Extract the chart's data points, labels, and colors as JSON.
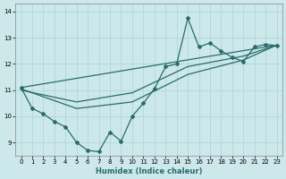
{
  "xlabel": "Humidex (Indice chaleur)",
  "xlim": [
    -0.5,
    23.5
  ],
  "ylim": [
    8.5,
    14.3
  ],
  "xticks": [
    0,
    1,
    2,
    3,
    4,
    5,
    6,
    7,
    8,
    9,
    10,
    11,
    12,
    13,
    14,
    15,
    16,
    17,
    18,
    19,
    20,
    21,
    22,
    23
  ],
  "yticks": [
    9,
    10,
    11,
    12,
    13,
    14
  ],
  "bg_color": "#cce8ea",
  "line_color": "#2a6b6b",
  "grid_color": "#aad4d6",
  "series1_x": [
    0,
    1,
    2,
    3,
    4,
    5,
    6,
    7,
    8,
    9,
    10,
    11,
    12,
    13,
    14,
    15,
    16,
    17,
    18,
    19,
    20,
    21,
    22,
    23
  ],
  "series1_y": [
    11.1,
    10.3,
    10.1,
    9.8,
    9.6,
    9.0,
    8.7,
    8.65,
    9.4,
    9.05,
    10.0,
    10.5,
    11.05,
    11.9,
    12.0,
    13.75,
    12.65,
    12.8,
    12.5,
    12.25,
    12.1,
    12.65,
    12.75,
    12.7
  ],
  "trend1_x": [
    0,
    23
  ],
  "trend1_y": [
    11.1,
    12.72
  ],
  "trend2_x": [
    0,
    5,
    10,
    15,
    20,
    23
  ],
  "trend2_y": [
    11.05,
    10.3,
    10.55,
    11.6,
    12.15,
    12.72
  ],
  "trend3_x": [
    0,
    5,
    10,
    15,
    20,
    23
  ],
  "trend3_y": [
    11.0,
    10.55,
    10.9,
    11.9,
    12.3,
    12.72
  ]
}
